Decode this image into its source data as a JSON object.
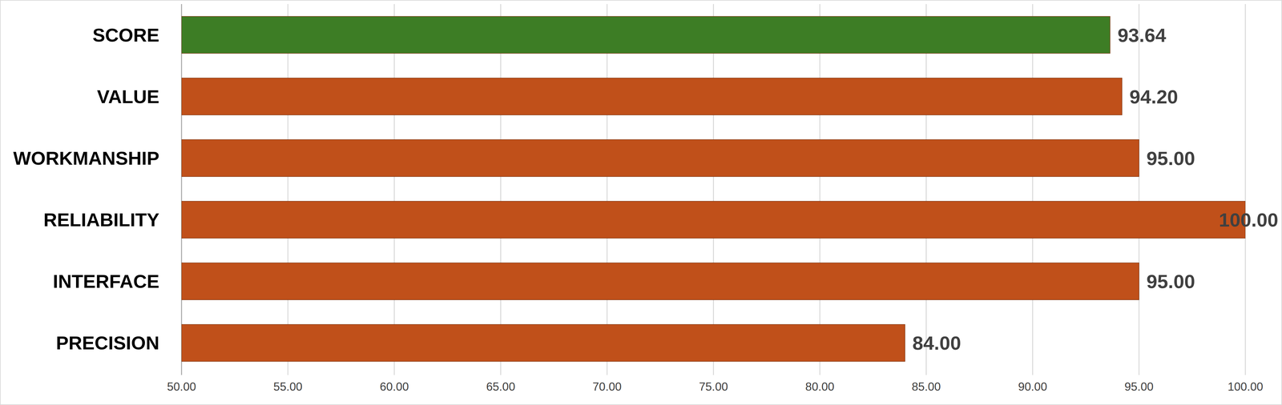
{
  "chart_data": {
    "type": "bar",
    "orientation": "horizontal",
    "categories": [
      "SCORE",
      "VALUE",
      "WORKMANSHIP",
      "RELIABILITY",
      "INTERFACE",
      "PRECISION"
    ],
    "values": [
      93.64,
      94.2,
      95.0,
      100.0,
      95.0,
      84.0
    ],
    "value_labels": [
      "93.64",
      "94.20",
      "95.00",
      "100.00",
      "95.00",
      "84.00"
    ],
    "colors": [
      "#3d7d25",
      "#c0501a",
      "#c0501a",
      "#c0501a",
      "#c0501a",
      "#c0501a"
    ],
    "xlim": [
      50,
      100
    ],
    "xticks": [
      {
        "value": 50,
        "label": "50.00"
      },
      {
        "value": 55,
        "label": "55.00"
      },
      {
        "value": 60,
        "label": "60.00"
      },
      {
        "value": 65,
        "label": "65.00"
      },
      {
        "value": 70,
        "label": "70.00"
      },
      {
        "value": 75,
        "label": "75.00"
      },
      {
        "value": 80,
        "label": "80.00"
      },
      {
        "value": 85,
        "label": "85.00"
      },
      {
        "value": 90,
        "label": "90.00"
      },
      {
        "value": 95,
        "label": "95.00"
      },
      {
        "value": 100,
        "label": "100.00"
      }
    ],
    "grid": true,
    "data_labels": true
  }
}
